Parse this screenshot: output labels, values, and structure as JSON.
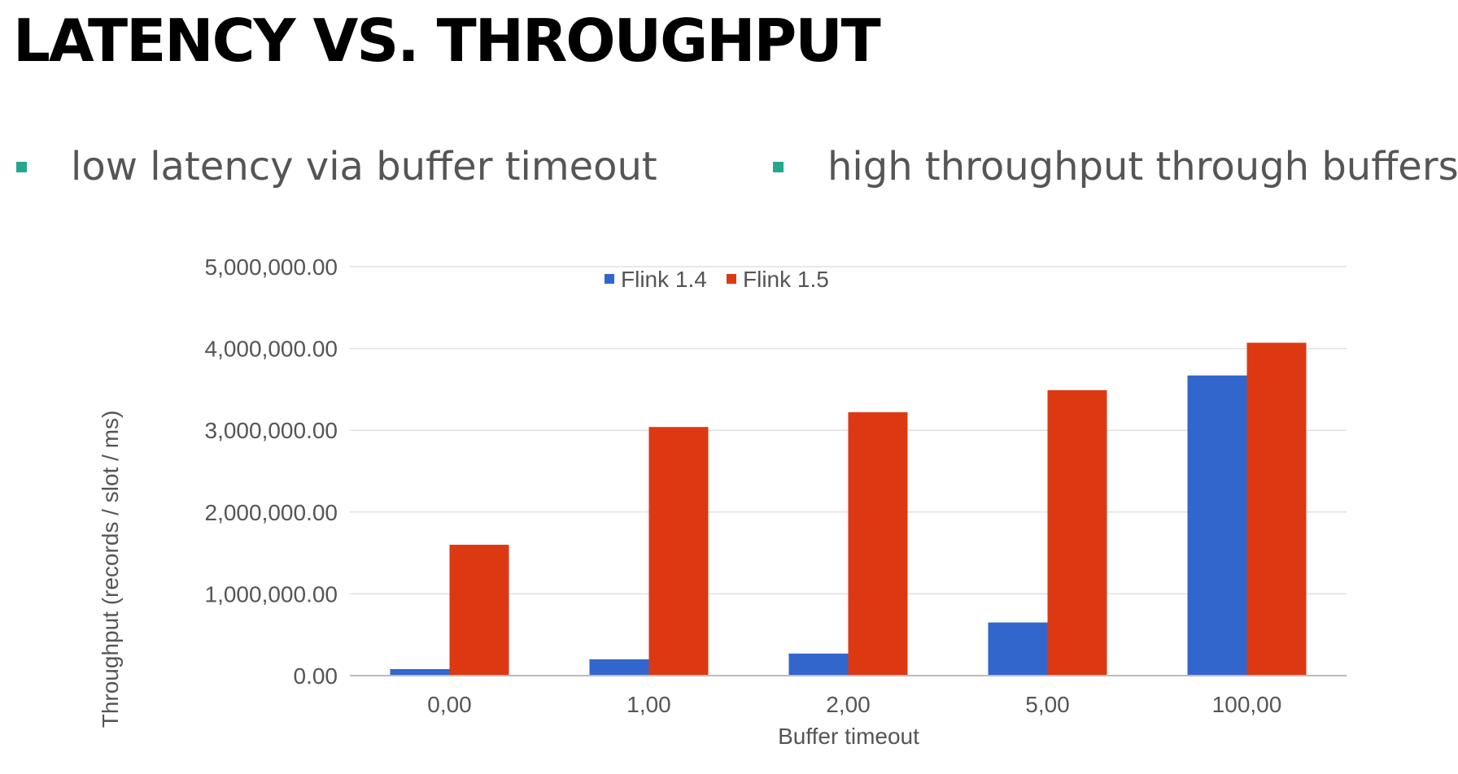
{
  "slide": {
    "title": "LATENCY VS. THROUGHPUT",
    "bullets": [
      "low latency via buffer timeout",
      "high throughput through buffers"
    ],
    "bullet_color": "#26a68d"
  },
  "chart_data": {
    "type": "bar",
    "xlabel": "Buffer timeout",
    "ylabel": "Throughput (records / slot / ms)",
    "categories": [
      "0,00",
      "1,00",
      "2,00",
      "5,00",
      "100,00"
    ],
    "series": [
      {
        "name": "Flink 1.4",
        "color": "#3366cc",
        "values": [
          80000,
          200000,
          270000,
          650000,
          3670000
        ]
      },
      {
        "name": "Flink 1.5",
        "color": "#dc3912",
        "values": [
          1600000,
          3040000,
          3220000,
          3490000,
          4070000
        ]
      }
    ],
    "ylim": [
      0,
      5000000
    ],
    "yticks": [
      0,
      1000000,
      2000000,
      3000000,
      4000000,
      5000000
    ],
    "ytick_labels": [
      "0.00",
      "1,000,000.00",
      "2,000,000.00",
      "3,000,000.00",
      "4,000,000.00",
      "5,000,000.00"
    ],
    "grid": true,
    "legend_position": "top"
  }
}
